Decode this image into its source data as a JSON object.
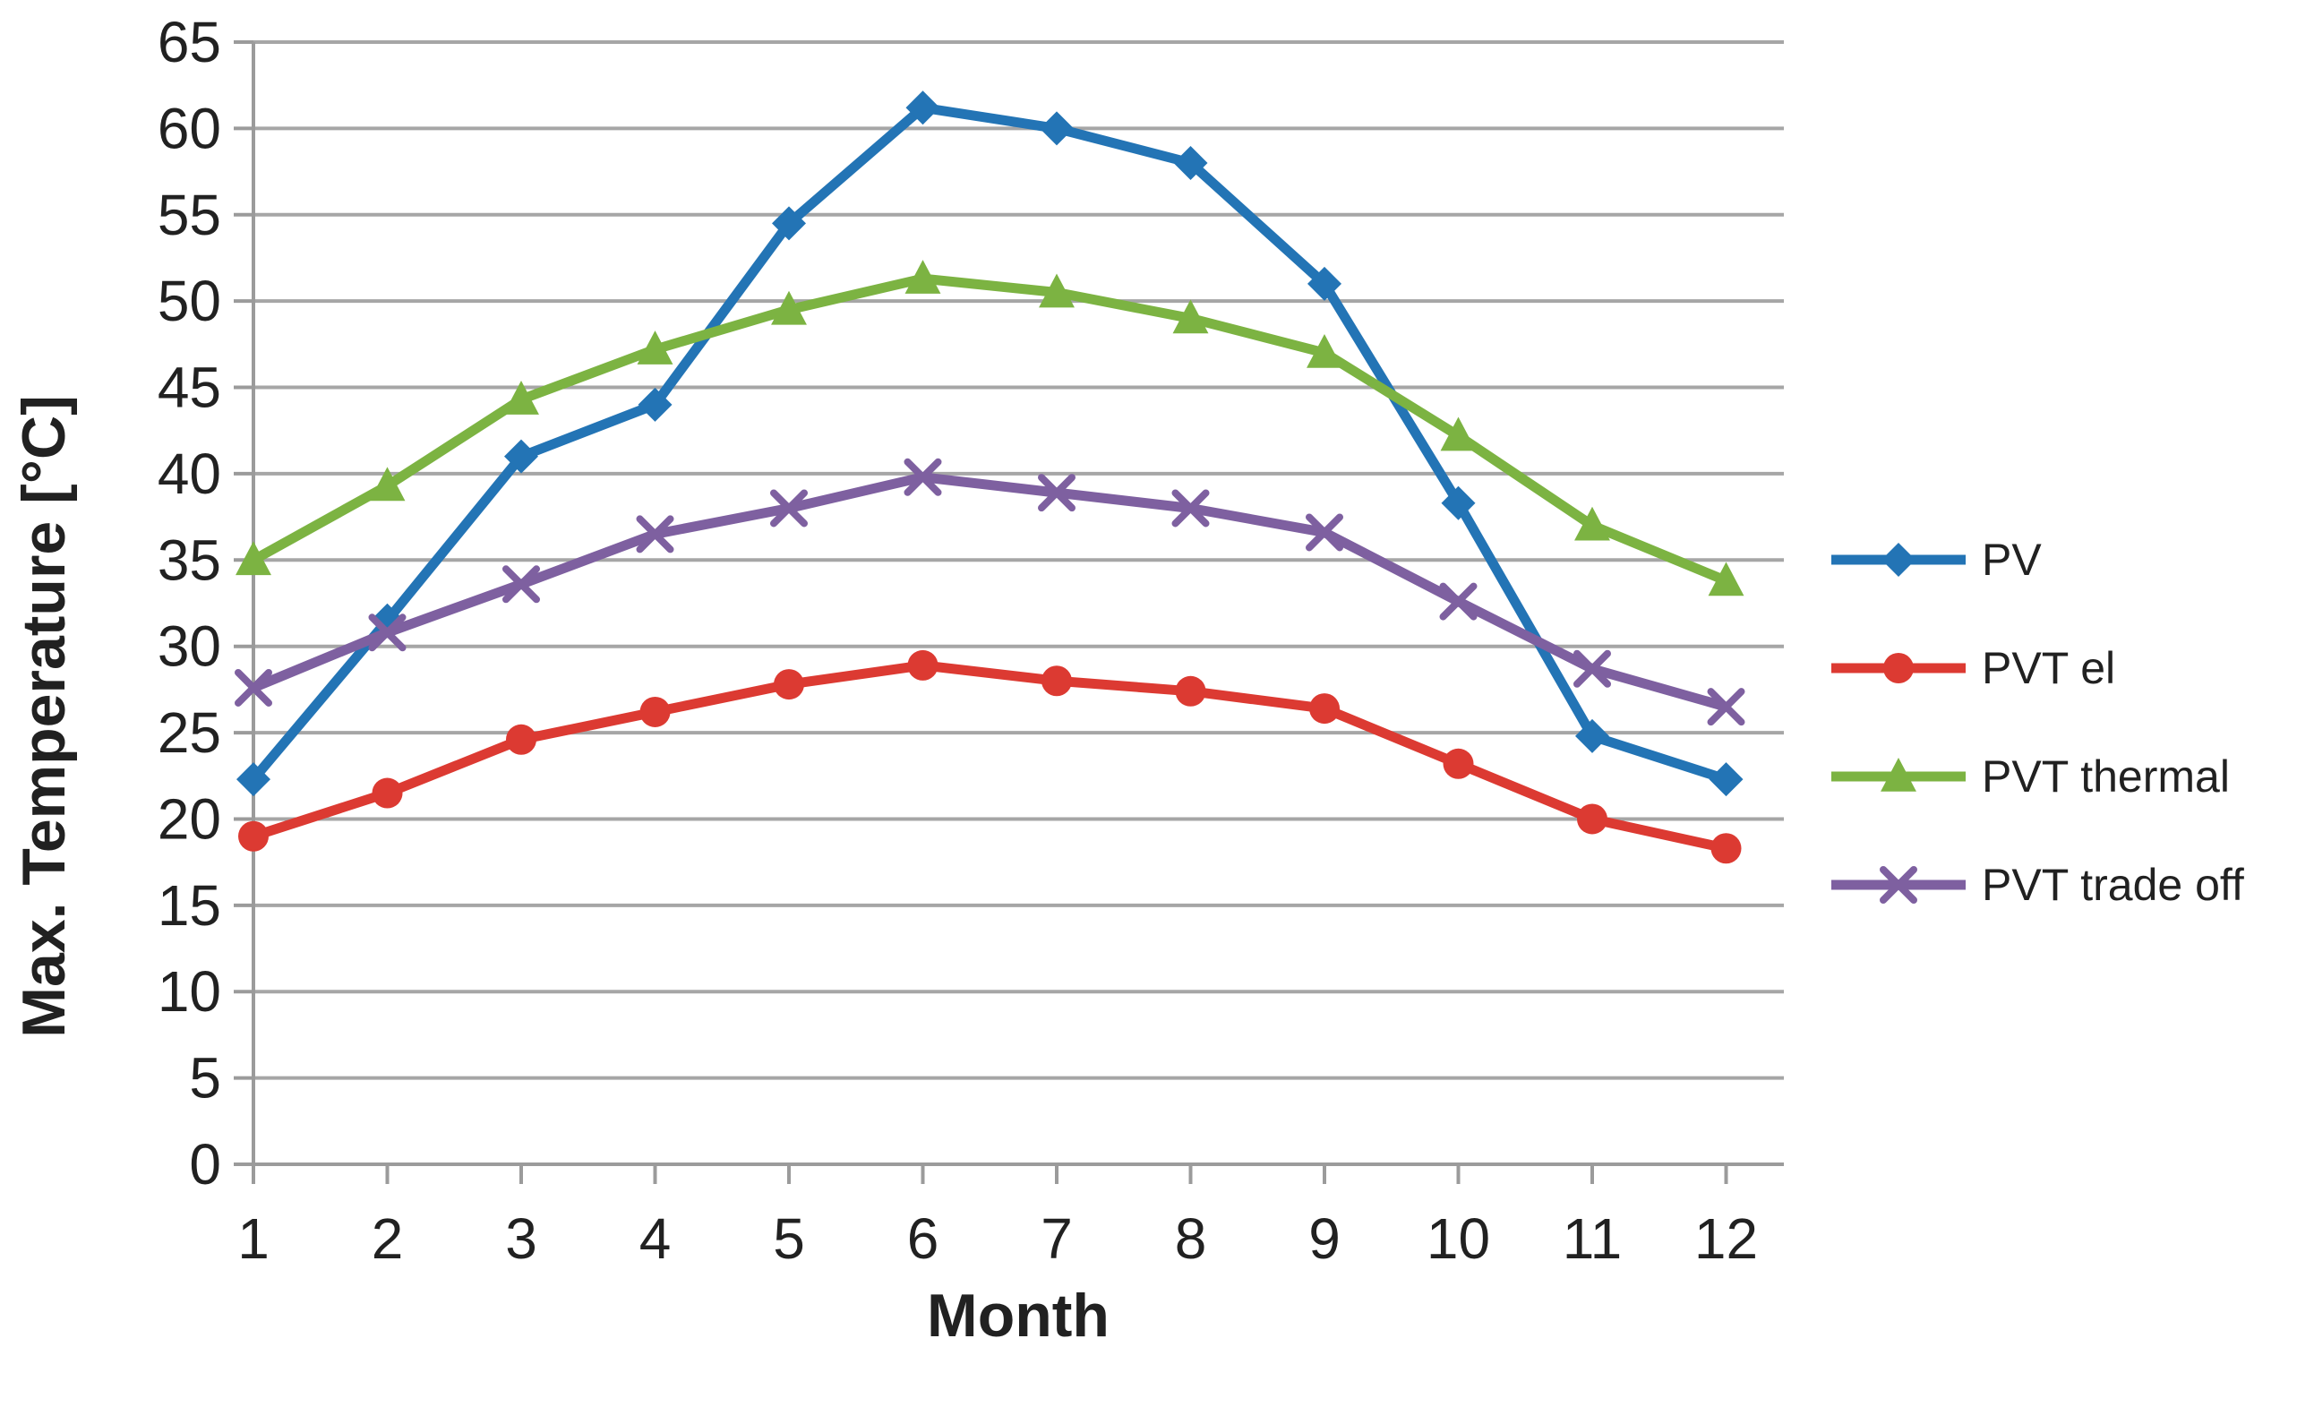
{
  "chart_data": {
    "type": "line",
    "title": "",
    "xlabel": "Month",
    "ylabel": "Max. Temperature [°C]",
    "x": [
      1,
      2,
      3,
      4,
      5,
      6,
      7,
      8,
      9,
      10,
      11,
      12
    ],
    "ylim": [
      0,
      65
    ],
    "ytick_step": 5,
    "yticks": [
      0,
      5,
      10,
      15,
      20,
      25,
      30,
      35,
      40,
      45,
      50,
      55,
      60,
      65
    ],
    "grid": true,
    "legend_position": "right",
    "series": [
      {
        "name": "PV",
        "color": "#2374B5",
        "marker": "diamond",
        "values": [
          22.3,
          31.5,
          41.0,
          44.0,
          54.5,
          61.2,
          60.0,
          58.0,
          51.0,
          38.3,
          24.8,
          22.3
        ]
      },
      {
        "name": "PVT el",
        "color": "#DC3A32",
        "marker": "circle",
        "values": [
          19.0,
          21.5,
          24.6,
          26.2,
          27.8,
          28.9,
          28.0,
          27.4,
          26.4,
          23.2,
          20.0,
          18.3
        ]
      },
      {
        "name": "PVT thermal",
        "color": "#7CB342",
        "marker": "triangle",
        "values": [
          35.0,
          39.3,
          44.3,
          47.2,
          49.5,
          51.3,
          50.5,
          49.0,
          47.0,
          42.2,
          37.0,
          33.8
        ]
      },
      {
        "name": "PVT trade off",
        "color": "#7E60A0",
        "marker": "x",
        "values": [
          27.6,
          30.8,
          33.6,
          36.5,
          38.0,
          39.8,
          38.9,
          38.0,
          36.6,
          32.6,
          28.7,
          26.5
        ]
      }
    ]
  },
  "colors": {
    "grid": "#A6A6A6",
    "axis": "#9B9B9B",
    "text": "#212121"
  }
}
